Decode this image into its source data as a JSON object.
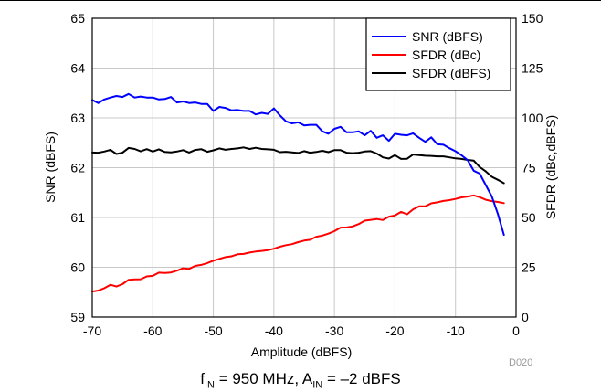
{
  "chart_data": {
    "type": "line",
    "xlabel": "Amplitude (dBFS)",
    "ylabel_left": "SNR (dBFS)",
    "ylabel_right": "SFDR (dBc,dBFS)",
    "xlim": [
      -70,
      0
    ],
    "ylim_left": [
      59,
      65
    ],
    "ylim_right": [
      0,
      150
    ],
    "x_ticks": [
      -70,
      -60,
      -50,
      -40,
      -30,
      -20,
      -10,
      0
    ],
    "x_tick_labels": [
      "-70",
      "-60",
      "-50",
      "-40",
      "-30",
      "-20",
      "-10",
      "0"
    ],
    "y_left_ticks": [
      59,
      60,
      61,
      62,
      63,
      64,
      65
    ],
    "y_left_tick_labels": [
      "59",
      "60",
      "61",
      "62",
      "63",
      "64",
      "65"
    ],
    "y_right_ticks": [
      0,
      25,
      50,
      75,
      100,
      125,
      150
    ],
    "y_right_tick_labels": [
      "0",
      "25",
      "50",
      "75",
      "100",
      "125",
      "150"
    ],
    "grid": true,
    "legend_position": "top-right",
    "figure_id": "D020",
    "series": [
      {
        "name": "SNR (dBFS)",
        "axis": "left",
        "color": "#0000ff",
        "x": [
          -70,
          -69,
          -68,
          -67,
          -66,
          -65,
          -64,
          -63,
          -62,
          -61,
          -60,
          -59,
          -58,
          -57,
          -56,
          -55,
          -54,
          -53,
          -52,
          -51,
          -50,
          -49,
          -48,
          -47,
          -46,
          -45,
          -44,
          -43,
          -42,
          -41,
          -40,
          -39,
          -38,
          -37,
          -36,
          -35,
          -34,
          -33,
          -32,
          -31,
          -30,
          -29,
          -28,
          -27,
          -26,
          -25,
          -24,
          -23,
          -22,
          -21,
          -20,
          -19,
          -18,
          -17,
          -16,
          -15,
          -14,
          -13,
          -12,
          -11,
          -10,
          -9,
          -8,
          -7,
          -6,
          -5,
          -4,
          -3,
          -2
        ],
        "values": [
          63.36,
          63.3,
          63.37,
          63.41,
          63.44,
          63.42,
          63.48,
          63.41,
          63.43,
          63.41,
          63.41,
          63.37,
          63.38,
          63.42,
          63.31,
          63.33,
          63.3,
          63.31,
          63.28,
          63.28,
          63.14,
          63.22,
          63.2,
          63.15,
          63.16,
          63.14,
          63.14,
          63.07,
          63.1,
          63.08,
          63.19,
          63.05,
          62.93,
          62.89,
          62.91,
          62.85,
          62.86,
          62.86,
          62.73,
          62.68,
          62.78,
          62.82,
          62.71,
          62.71,
          62.73,
          62.65,
          62.74,
          62.6,
          62.65,
          62.54,
          62.68,
          62.66,
          62.65,
          62.69,
          62.6,
          62.52,
          62.61,
          62.47,
          62.46,
          62.39,
          62.33,
          62.25,
          62.15,
          61.94,
          61.88,
          61.65,
          61.42,
          61.07,
          60.65
        ]
      },
      {
        "name": "SFDR (dBc)",
        "axis": "right",
        "color": "#ff0000",
        "x": [
          -70,
          -69,
          -68,
          -67,
          -66,
          -65,
          -64,
          -63,
          -62,
          -61,
          -60,
          -59,
          -58,
          -57,
          -56,
          -55,
          -54,
          -53,
          -52,
          -51,
          -50,
          -49,
          -48,
          -47,
          -46,
          -45,
          -44,
          -43,
          -42,
          -41,
          -40,
          -39,
          -38,
          -37,
          -36,
          -35,
          -34,
          -33,
          -32,
          -31,
          -30,
          -29,
          -28,
          -27,
          -26,
          -25,
          -24,
          -23,
          -22,
          -21,
          -20,
          -19,
          -18,
          -17,
          -16,
          -15,
          -14,
          -13,
          -12,
          -11,
          -10,
          -9,
          -8,
          -7,
          -6,
          -5,
          -4,
          -3,
          -2
        ],
        "values": [
          12.8,
          13.3,
          14.5,
          16.2,
          15.3,
          16.5,
          18.7,
          18.9,
          19.0,
          20.4,
          20.7,
          22.3,
          22.1,
          22.4,
          23.3,
          24.5,
          24.2,
          25.7,
          26.2,
          27.1,
          28.3,
          29.2,
          30.1,
          30.5,
          31.5,
          31.7,
          32.4,
          32.9,
          33.2,
          33.6,
          34.3,
          35.3,
          36.1,
          36.6,
          37.6,
          38.4,
          38.8,
          40.3,
          40.9,
          41.9,
          43.1,
          44.9,
          45.0,
          45.5,
          46.7,
          48.4,
          48.8,
          49.2,
          48.7,
          50.4,
          51.0,
          52.8,
          51.6,
          54.1,
          55.6,
          55.6,
          57.1,
          57.6,
          58.3,
          58.7,
          59.3,
          60.1,
          60.5,
          61.1,
          60.2,
          58.9,
          58.2,
          57.8,
          57.2
        ]
      },
      {
        "name": "SFDR (dBFS)",
        "axis": "right",
        "color": "#000000",
        "x": [
          -70,
          -69,
          -68,
          -67,
          -66,
          -65,
          -64,
          -63,
          -62,
          -61,
          -60,
          -59,
          -58,
          -57,
          -56,
          -55,
          -54,
          -53,
          -52,
          -51,
          -50,
          -49,
          -48,
          -47,
          -46,
          -45,
          -44,
          -43,
          -42,
          -41,
          -40,
          -39,
          -38,
          -37,
          -36,
          -35,
          -34,
          -33,
          -32,
          -31,
          -30,
          -29,
          -28,
          -27,
          -26,
          -25,
          -24,
          -23,
          -22,
          -21,
          -20,
          -19,
          -18,
          -17,
          -16,
          -15,
          -14,
          -13,
          -12,
          -11,
          -10,
          -9,
          -8,
          -7,
          -6,
          -5,
          -4,
          -3,
          -2
        ],
        "values": [
          82.6,
          82.5,
          83.1,
          84.0,
          81.9,
          82.5,
          84.9,
          84.4,
          83.2,
          84.3,
          83.1,
          84.2,
          82.9,
          82.7,
          83.1,
          83.8,
          82.6,
          83.9,
          84.3,
          83.0,
          83.7,
          84.7,
          84.0,
          84.4,
          84.7,
          85.2,
          84.4,
          85.0,
          84.4,
          84.2,
          84.0,
          82.8,
          83.0,
          82.7,
          82.4,
          83.3,
          82.5,
          82.9,
          83.5,
          82.8,
          83.8,
          83.8,
          82.5,
          82.3,
          82.5,
          83.1,
          83.3,
          82.1,
          80.2,
          79.6,
          81.3,
          79.4,
          79.5,
          81.6,
          81.3,
          81.0,
          80.9,
          80.7,
          80.7,
          80.2,
          79.7,
          79.4,
          78.9,
          78.6,
          75.3,
          73.1,
          70.4,
          68.9,
          67.2
        ]
      }
    ]
  },
  "caption": {
    "f_main": "f",
    "f_sub": "IN",
    "f_value": " = 950 MHz, A",
    "a_sub": "IN",
    "a_value": " = –2 dBFS"
  }
}
